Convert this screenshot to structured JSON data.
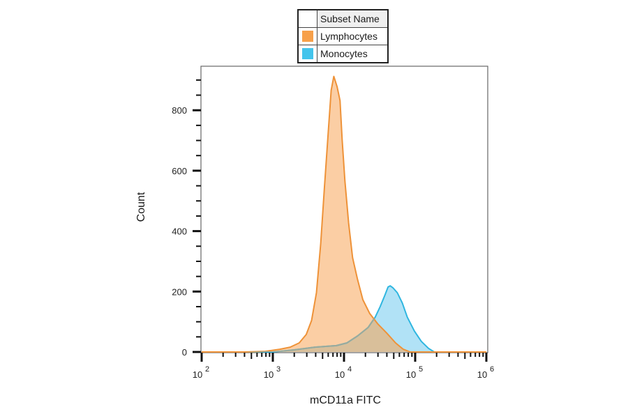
{
  "legend": {
    "header": "Subset Name",
    "items": [
      {
        "label": "Lymphocytes",
        "color": "#f7a04a"
      },
      {
        "label": "Monocytes",
        "color": "#43c4ec"
      }
    ]
  },
  "axes": {
    "x_title": "mCD11a FITC",
    "y_title": "Count",
    "y_ticks": [
      {
        "value": 0,
        "label": "0"
      },
      {
        "value": 200,
        "label": "200"
      },
      {
        "value": 400,
        "label": "400"
      },
      {
        "value": 600,
        "label": "600"
      },
      {
        "value": 800,
        "label": "800"
      }
    ],
    "x_ticks": [
      {
        "exp": 2,
        "label": "10",
        "sup": "2"
      },
      {
        "exp": 3,
        "label": "10",
        "sup": "3"
      },
      {
        "exp": 4,
        "label": "10",
        "sup": "4"
      },
      {
        "exp": 5,
        "label": "10",
        "sup": "5"
      },
      {
        "exp": 6,
        "label": "10",
        "sup": "6"
      }
    ]
  },
  "colors": {
    "lymph_line": "#ee9238",
    "lymph_fill": "#fbc99a",
    "mono_line": "#2fb6e0",
    "mono_fill": "#a8dff5",
    "overlap_fill": "#d9bf9a",
    "frame": "#666666"
  },
  "chart_data": {
    "type": "area",
    "title": "",
    "xlabel": "mCD11a FITC",
    "ylabel": "Count",
    "xscale": "log (biexponential display)",
    "xlim": [
      100,
      1000000
    ],
    "ylim": [
      0,
      945
    ],
    "grid": false,
    "legend_position": "top-center, above plot",
    "series": [
      {
        "name": "Lymphocytes",
        "color": "#f7a04a",
        "points": [
          [
            100,
            0
          ],
          [
            400,
            0
          ],
          [
            780,
            2
          ],
          [
            1250,
            9
          ],
          [
            1750,
            16
          ],
          [
            2350,
            30
          ],
          [
            2950,
            58
          ],
          [
            3500,
            104
          ],
          [
            4100,
            196
          ],
          [
            4700,
            358
          ],
          [
            5300,
            543
          ],
          [
            6000,
            727
          ],
          [
            6600,
            866
          ],
          [
            7200,
            912
          ],
          [
            8000,
            878
          ],
          [
            8800,
            832
          ],
          [
            9400,
            704
          ],
          [
            10300,
            566
          ],
          [
            11600,
            427
          ],
          [
            13200,
            312
          ],
          [
            15400,
            243
          ],
          [
            18400,
            173
          ],
          [
            23000,
            127
          ],
          [
            30000,
            92
          ],
          [
            40000,
            62
          ],
          [
            53000,
            30
          ],
          [
            68000,
            9
          ],
          [
            85000,
            0
          ],
          [
            1000000,
            0
          ]
        ]
      },
      {
        "name": "Monocytes",
        "color": "#43c4ec",
        "points": [
          [
            100,
            0
          ],
          [
            1000,
            0
          ],
          [
            2000,
            7
          ],
          [
            3900,
            16
          ],
          [
            7800,
            21
          ],
          [
            11000,
            30
          ],
          [
            15500,
            53
          ],
          [
            21800,
            81
          ],
          [
            27400,
            115
          ],
          [
            32200,
            150
          ],
          [
            37100,
            185
          ],
          [
            41600,
            215
          ],
          [
            44600,
            219
          ],
          [
            48900,
            212
          ],
          [
            56100,
            196
          ],
          [
            66000,
            162
          ],
          [
            77500,
            115
          ],
          [
            97500,
            69
          ],
          [
            122000,
            35
          ],
          [
            154000,
            12
          ],
          [
            185000,
            0
          ],
          [
            1000000,
            0
          ]
        ]
      }
    ]
  }
}
